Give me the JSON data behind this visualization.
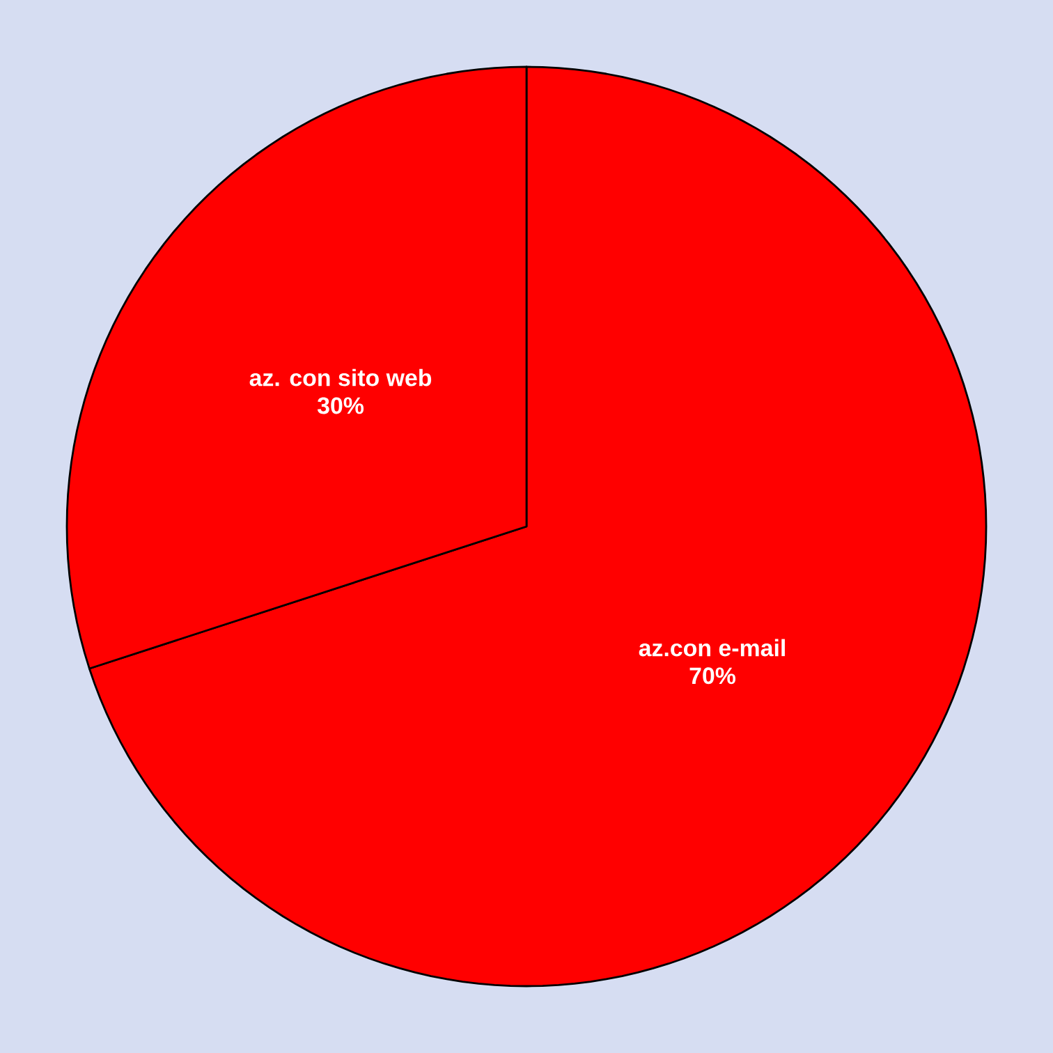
{
  "chart_data": {
    "type": "pie",
    "categories": [
      "az.con e-mail",
      "az. con sito web"
    ],
    "values": [
      70,
      30
    ],
    "colors": [
      "#ff0000",
      "#ff0000"
    ],
    "value_labels": [
      "70%",
      "30%"
    ]
  }
}
